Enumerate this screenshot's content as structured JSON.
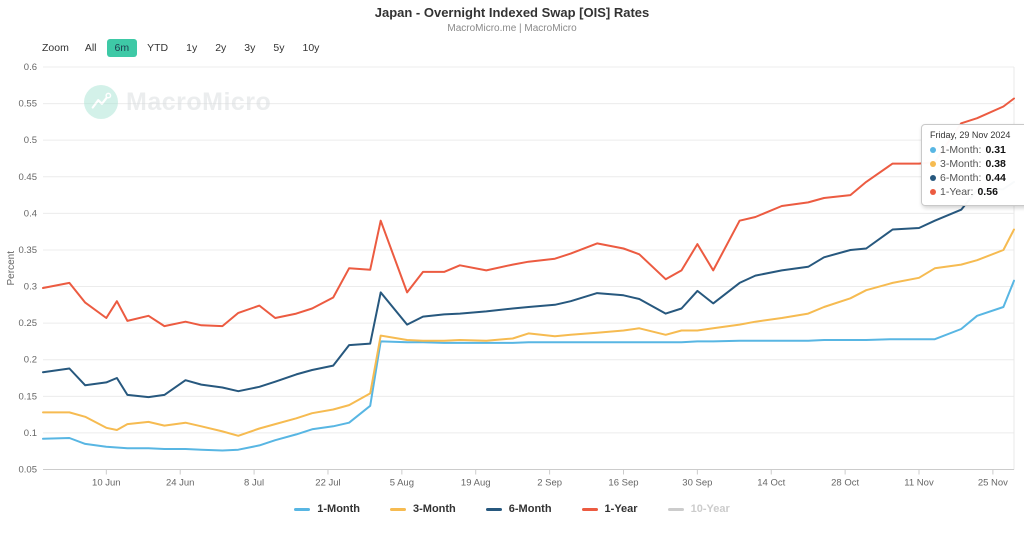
{
  "theme": {
    "accent": "#3ec9a6",
    "grid_color": "#ececec",
    "axis_line_color": "#cccccc",
    "tick_label_color": "#666666",
    "title_color": "#333333"
  },
  "header": {
    "title": "Japan - Overnight Indexed Swap [OIS] Rates",
    "subtitle": "MacroMicro.me | MacroMicro"
  },
  "zoom_bar": {
    "label": "Zoom",
    "buttons": [
      {
        "label": "All",
        "active": false
      },
      {
        "label": "6m",
        "active": true
      },
      {
        "label": "YTD",
        "active": false
      },
      {
        "label": "1y",
        "active": false
      },
      {
        "label": "2y",
        "active": false
      },
      {
        "label": "3y",
        "active": false
      },
      {
        "label": "5y",
        "active": false
      },
      {
        "label": "10y",
        "active": false
      }
    ]
  },
  "watermark": {
    "brand": "MacroMicro"
  },
  "tooltip": {
    "date": "Friday, 29 Nov 2024",
    "rows": [
      {
        "label": "1-Month:",
        "value": "0.31",
        "color": "#58b6e3"
      },
      {
        "label": "3-Month:",
        "value": "0.38",
        "color": "#f6bb51"
      },
      {
        "label": "6-Month:",
        "value": "0.44",
        "color": "#27587e"
      },
      {
        "label": "1-Year:",
        "value": "0.56",
        "color": "#ec5b41"
      }
    ]
  },
  "chart_data": {
    "type": "line",
    "title": "Japan - Overnight Indexed Swap [OIS] Rates",
    "xlabel": "",
    "ylabel": "Percent",
    "ylim": [
      0.05,
      0.6
    ],
    "grid": true,
    "legend_position": "bottom",
    "y_ticks": [
      0.05,
      0.1,
      0.15,
      0.2,
      0.25,
      0.3,
      0.35,
      0.4,
      0.45,
      0.5,
      0.55,
      0.6
    ],
    "y_tick_labels": [
      "0.05",
      "0.1",
      "0.15",
      "0.2",
      "0.25",
      "0.3",
      "0.35",
      "0.4",
      "0.45",
      "0.5",
      "0.55",
      "0.6"
    ],
    "x_total_days": 184,
    "x_tick_days": [
      12,
      26,
      40,
      54,
      68,
      82,
      96,
      110,
      124,
      138,
      152,
      166,
      180
    ],
    "x_tick_labels": [
      "10 Jun",
      "24 Jun",
      "8 Jul",
      "22 Jul",
      "5 Aug",
      "19 Aug",
      "2 Sep",
      "16 Sep",
      "30 Sep",
      "14 Oct",
      "28 Oct",
      "11 Nov",
      "25 Nov"
    ],
    "dates": [
      "29 May",
      "3 Jun",
      "6 Jun",
      "10 Jun",
      "12 Jun",
      "14 Jun",
      "18 Jun",
      "21 Jun",
      "25 Jun",
      "28 Jun",
      "2 Jul",
      "5 Jul",
      "9 Jul",
      "12 Jul",
      "16 Jul",
      "19 Jul",
      "23 Jul",
      "26 Jul",
      "30 Jul",
      "1 Aug",
      "6 Aug",
      "9 Aug",
      "13 Aug",
      "16 Aug",
      "21 Aug",
      "26 Aug",
      "29 Aug",
      "3 Sep",
      "6 Sep",
      "11 Sep",
      "16 Sep",
      "19 Sep",
      "24 Sep",
      "27 Sep",
      "30 Sep",
      "3 Oct",
      "8 Oct",
      "11 Oct",
      "16 Oct",
      "21 Oct",
      "24 Oct",
      "29 Oct",
      "1 Nov",
      "6 Nov",
      "11 Nov",
      "14 Nov",
      "19 Nov",
      "22 Nov",
      "27 Nov",
      "29 Nov"
    ],
    "x_days": [
      0,
      5,
      8,
      12,
      14,
      16,
      20,
      23,
      27,
      30,
      34,
      37,
      41,
      44,
      48,
      51,
      55,
      58,
      62,
      64,
      69,
      72,
      76,
      79,
      84,
      89,
      92,
      97,
      100,
      105,
      110,
      113,
      118,
      121,
      124,
      127,
      132,
      135,
      140,
      145,
      148,
      153,
      156,
      161,
      166,
      169,
      174,
      177,
      182,
      184
    ],
    "series": [
      {
        "name": "1-Month",
        "color": "#58b6e3",
        "visible": true,
        "values": [
          0.092,
          0.093,
          0.085,
          0.081,
          0.08,
          0.079,
          0.079,
          0.078,
          0.078,
          0.077,
          0.076,
          0.077,
          0.083,
          0.09,
          0.098,
          0.105,
          0.109,
          0.114,
          0.137,
          0.225,
          0.224,
          0.224,
          0.223,
          0.223,
          0.223,
          0.223,
          0.224,
          0.224,
          0.224,
          0.224,
          0.224,
          0.224,
          0.224,
          0.224,
          0.225,
          0.225,
          0.226,
          0.226,
          0.226,
          0.226,
          0.227,
          0.227,
          0.227,
          0.228,
          0.228,
          0.228,
          0.242,
          0.26,
          0.272,
          0.308
        ]
      },
      {
        "name": "3-Month",
        "color": "#f6bb51",
        "visible": true,
        "values": [
          0.128,
          0.128,
          0.122,
          0.107,
          0.104,
          0.112,
          0.115,
          0.11,
          0.114,
          0.109,
          0.102,
          0.096,
          0.106,
          0.112,
          0.12,
          0.127,
          0.132,
          0.138,
          0.154,
          0.233,
          0.227,
          0.226,
          0.226,
          0.227,
          0.226,
          0.229,
          0.236,
          0.232,
          0.234,
          0.237,
          0.24,
          0.243,
          0.234,
          0.24,
          0.24,
          0.243,
          0.248,
          0.252,
          0.257,
          0.263,
          0.272,
          0.284,
          0.295,
          0.305,
          0.312,
          0.325,
          0.33,
          0.336,
          0.35,
          0.378
        ]
      },
      {
        "name": "6-Month",
        "color": "#27587e",
        "visible": true,
        "values": [
          0.183,
          0.188,
          0.165,
          0.169,
          0.175,
          0.152,
          0.149,
          0.152,
          0.172,
          0.166,
          0.162,
          0.157,
          0.163,
          0.17,
          0.18,
          0.186,
          0.192,
          0.22,
          0.222,
          0.292,
          0.248,
          0.259,
          0.262,
          0.263,
          0.266,
          0.27,
          0.272,
          0.275,
          0.28,
          0.291,
          0.288,
          0.283,
          0.263,
          0.27,
          0.294,
          0.277,
          0.305,
          0.315,
          0.322,
          0.327,
          0.34,
          0.35,
          0.352,
          0.378,
          0.38,
          0.39,
          0.405,
          0.432,
          0.433,
          0.443
        ]
      },
      {
        "name": "1-Year",
        "color": "#ec5b41",
        "visible": true,
        "values": [
          0.298,
          0.305,
          0.278,
          0.257,
          0.28,
          0.253,
          0.26,
          0.246,
          0.252,
          0.247,
          0.246,
          0.264,
          0.274,
          0.257,
          0.263,
          0.27,
          0.285,
          0.325,
          0.323,
          0.39,
          0.292,
          0.32,
          0.32,
          0.329,
          0.322,
          0.33,
          0.334,
          0.338,
          0.345,
          0.359,
          0.352,
          0.344,
          0.31,
          0.322,
          0.358,
          0.322,
          0.39,
          0.395,
          0.41,
          0.415,
          0.421,
          0.425,
          0.443,
          0.468,
          0.468,
          0.47,
          0.523,
          0.53,
          0.546,
          0.557
        ]
      },
      {
        "name": "10-Year",
        "color": "#cccccc",
        "visible": false,
        "values": []
      }
    ]
  }
}
